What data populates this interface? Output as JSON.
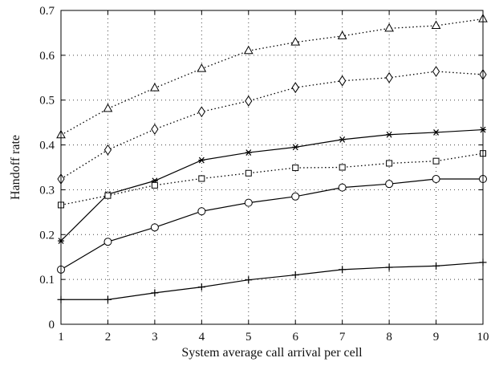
{
  "chart_data": {
    "type": "line",
    "xlabel": "System average call arrival per cell",
    "ylabel": "Handoff rate",
    "xlim": [
      1,
      10
    ],
    "ylim": [
      0,
      0.7
    ],
    "x": [
      1,
      2,
      3,
      4,
      5,
      6,
      7,
      8,
      9,
      10
    ],
    "x_ticks": [
      "1",
      "2",
      "3",
      "4",
      "5",
      "6",
      "7",
      "8",
      "9",
      "10"
    ],
    "y_ticks": [
      "0",
      "0.1",
      "0.2",
      "0.3",
      "0.4",
      "0.5",
      "0.6",
      "0.7"
    ],
    "grid": true,
    "legend": "none",
    "series": [
      {
        "marker": "triangle",
        "line": "dotted",
        "values": [
          0.422,
          0.481,
          0.527,
          0.57,
          0.61,
          0.629,
          0.643,
          0.66,
          0.666,
          0.681
        ]
      },
      {
        "marker": "diamond",
        "line": "dotted",
        "values": [
          0.324,
          0.389,
          0.435,
          0.474,
          0.498,
          0.528,
          0.543,
          0.55,
          0.564,
          0.557
        ]
      },
      {
        "marker": "asterisk",
        "line": "solid",
        "values": [
          0.186,
          0.29,
          0.32,
          0.366,
          0.383,
          0.395,
          0.412,
          0.423,
          0.428,
          0.434
        ]
      },
      {
        "marker": "square",
        "line": "dotted",
        "values": [
          0.266,
          0.287,
          0.31,
          0.325,
          0.337,
          0.349,
          0.35,
          0.359,
          0.364,
          0.381
        ]
      },
      {
        "marker": "circle",
        "line": "solid",
        "values": [
          0.122,
          0.184,
          0.216,
          0.252,
          0.271,
          0.285,
          0.305,
          0.313,
          0.324,
          0.324
        ]
      },
      {
        "marker": "plus",
        "line": "solid",
        "values": [
          0.055,
          0.055,
          0.07,
          0.083,
          0.099,
          0.11,
          0.122,
          0.127,
          0.13,
          0.138
        ]
      }
    ]
  }
}
